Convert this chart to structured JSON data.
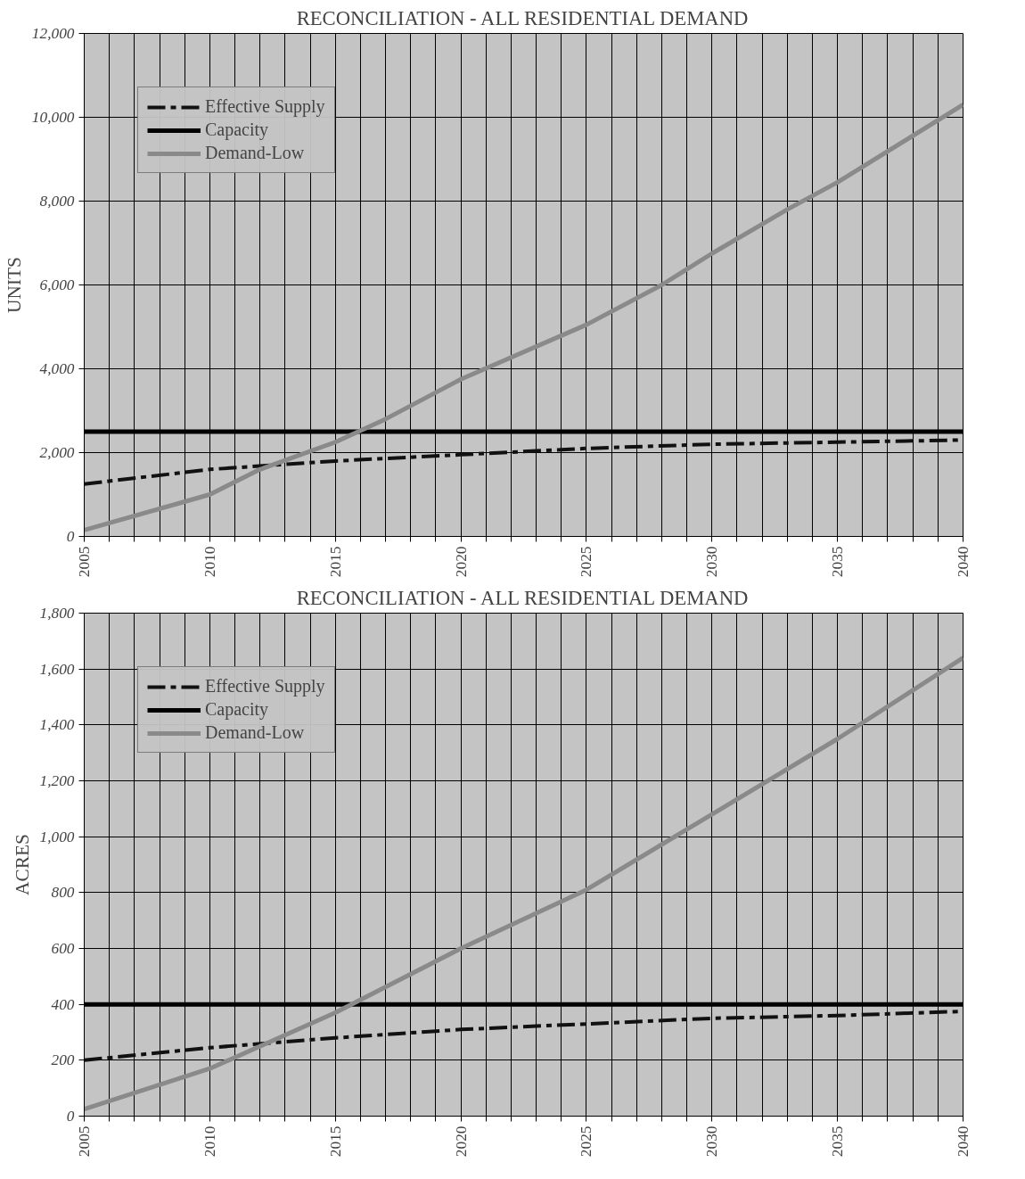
{
  "chart_data": [
    {
      "type": "line",
      "title": "RECONCILIATION - ALL RESIDENTIAL DEMAND",
      "ylabel": "UNITS",
      "legend": "top left",
      "grid": true,
      "xlim": [
        2005,
        2040
      ],
      "ylim": [
        0,
        12000
      ],
      "xticks": [
        2005,
        {
          "value": 2006,
          "label": null
        },
        {
          "value": 2007,
          "label": null
        },
        {
          "value": 2008,
          "label": null
        },
        {
          "value": 2009,
          "label": null
        },
        2010,
        {
          "value": 2011,
          "label": null
        },
        {
          "value": 2012,
          "label": null
        },
        {
          "value": 2013,
          "label": null
        },
        {
          "value": 2014,
          "label": null
        },
        2015,
        {
          "value": 2016,
          "label": null
        },
        {
          "value": 2017,
          "label": null
        },
        {
          "value": 2018,
          "label": null
        },
        {
          "value": 2019,
          "label": null
        },
        2020,
        {
          "value": 2021,
          "label": null
        },
        {
          "value": 2022,
          "label": null
        },
        {
          "value": 2023,
          "label": null
        },
        {
          "value": 2024,
          "label": null
        },
        2025,
        {
          "value": 2026,
          "label": null
        },
        {
          "value": 2027,
          "label": null
        },
        {
          "value": 2028,
          "label": null
        },
        {
          "value": 2029,
          "label": null
        },
        2030,
        {
          "value": 2031,
          "label": null
        },
        {
          "value": 2032,
          "label": null
        },
        {
          "value": 2033,
          "label": null
        },
        {
          "value": 2034,
          "label": null
        },
        2035,
        {
          "value": 2036,
          "label": null
        },
        {
          "value": 2037,
          "label": null
        },
        {
          "value": 2038,
          "label": null
        },
        {
          "value": 2039,
          "label": null
        },
        2040
      ],
      "yticks": [
        0,
        {
          "value": 2000,
          "label": "2,000"
        },
        {
          "value": 4000,
          "label": "4,000"
        },
        {
          "value": 6000,
          "label": "6,000"
        },
        {
          "value": 8000,
          "label": "8,000"
        },
        {
          "value": 10000,
          "label": "10,000"
        },
        {
          "value": 12000,
          "label": "12,000"
        }
      ],
      "series": [
        {
          "name": "Effective Supply",
          "color": "#111111",
          "line_style": "dashed",
          "x": [
            2005,
            2010,
            2015,
            2020,
            2025,
            2030,
            2035,
            2040
          ],
          "values": [
            1250,
            1600,
            1800,
            1950,
            2100,
            2200,
            2250,
            2300
          ]
        },
        {
          "name": "Capacity",
          "color": "#000000",
          "line_style": "solid",
          "x": [
            2005,
            2040
          ],
          "values": [
            2500,
            2500
          ]
        },
        {
          "name": "Demand-Low",
          "color": "#8a8a8a",
          "line_style": "solid",
          "x": [
            2005,
            2010,
            2012,
            2015,
            2017,
            2020,
            2025,
            2028,
            2030,
            2033,
            2035,
            2040
          ],
          "values": [
            150,
            1000,
            1600,
            2250,
            2800,
            3750,
            5050,
            6000,
            6750,
            7800,
            8450,
            10300
          ]
        }
      ]
    },
    {
      "type": "line",
      "title": "RECONCILIATION - ALL RESIDENTIAL DEMAND",
      "ylabel": "ACRES",
      "legend": "top left",
      "grid": true,
      "xlim": [
        2005,
        2040
      ],
      "ylim": [
        0,
        1800
      ],
      "xticks": [
        2005,
        {
          "value": 2006,
          "label": null
        },
        {
          "value": 2007,
          "label": null
        },
        {
          "value": 2008,
          "label": null
        },
        {
          "value": 2009,
          "label": null
        },
        2010,
        {
          "value": 2011,
          "label": null
        },
        {
          "value": 2012,
          "label": null
        },
        {
          "value": 2013,
          "label": null
        },
        {
          "value": 2014,
          "label": null
        },
        2015,
        {
          "value": 2016,
          "label": null
        },
        {
          "value": 2017,
          "label": null
        },
        {
          "value": 2018,
          "label": null
        },
        {
          "value": 2019,
          "label": null
        },
        2020,
        {
          "value": 2021,
          "label": null
        },
        {
          "value": 2022,
          "label": null
        },
        {
          "value": 2023,
          "label": null
        },
        {
          "value": 2024,
          "label": null
        },
        2025,
        {
          "value": 2026,
          "label": null
        },
        {
          "value": 2027,
          "label": null
        },
        {
          "value": 2028,
          "label": null
        },
        {
          "value": 2029,
          "label": null
        },
        2030,
        {
          "value": 2031,
          "label": null
        },
        {
          "value": 2032,
          "label": null
        },
        {
          "value": 2033,
          "label": null
        },
        {
          "value": 2034,
          "label": null
        },
        2035,
        {
          "value": 2036,
          "label": null
        },
        {
          "value": 2037,
          "label": null
        },
        {
          "value": 2038,
          "label": null
        },
        {
          "value": 2039,
          "label": null
        },
        2040
      ],
      "yticks": [
        0,
        200,
        400,
        600,
        800,
        {
          "value": 1000,
          "label": "1,000"
        },
        {
          "value": 1200,
          "label": "1,200"
        },
        {
          "value": 1400,
          "label": "1,400"
        },
        {
          "value": 1600,
          "label": "1,600"
        },
        {
          "value": 1800,
          "label": "1,800"
        }
      ],
      "series": [
        {
          "name": "Effective Supply",
          "color": "#111111",
          "line_style": "dashed",
          "x": [
            2005,
            2010,
            2015,
            2020,
            2025,
            2030,
            2035,
            2040
          ],
          "values": [
            200,
            245,
            280,
            310,
            330,
            350,
            360,
            375
          ]
        },
        {
          "name": "Capacity",
          "color": "#000000",
          "line_style": "solid",
          "x": [
            2005,
            2040
          ],
          "values": [
            400,
            400
          ]
        },
        {
          "name": "Demand-Low",
          "color": "#8a8a8a",
          "line_style": "solid",
          "x": [
            2005,
            2010,
            2015,
            2020,
            2025,
            2030,
            2035,
            2040
          ],
          "values": [
            25,
            170,
            370,
            600,
            810,
            1080,
            1350,
            1640
          ]
        }
      ]
    }
  ]
}
